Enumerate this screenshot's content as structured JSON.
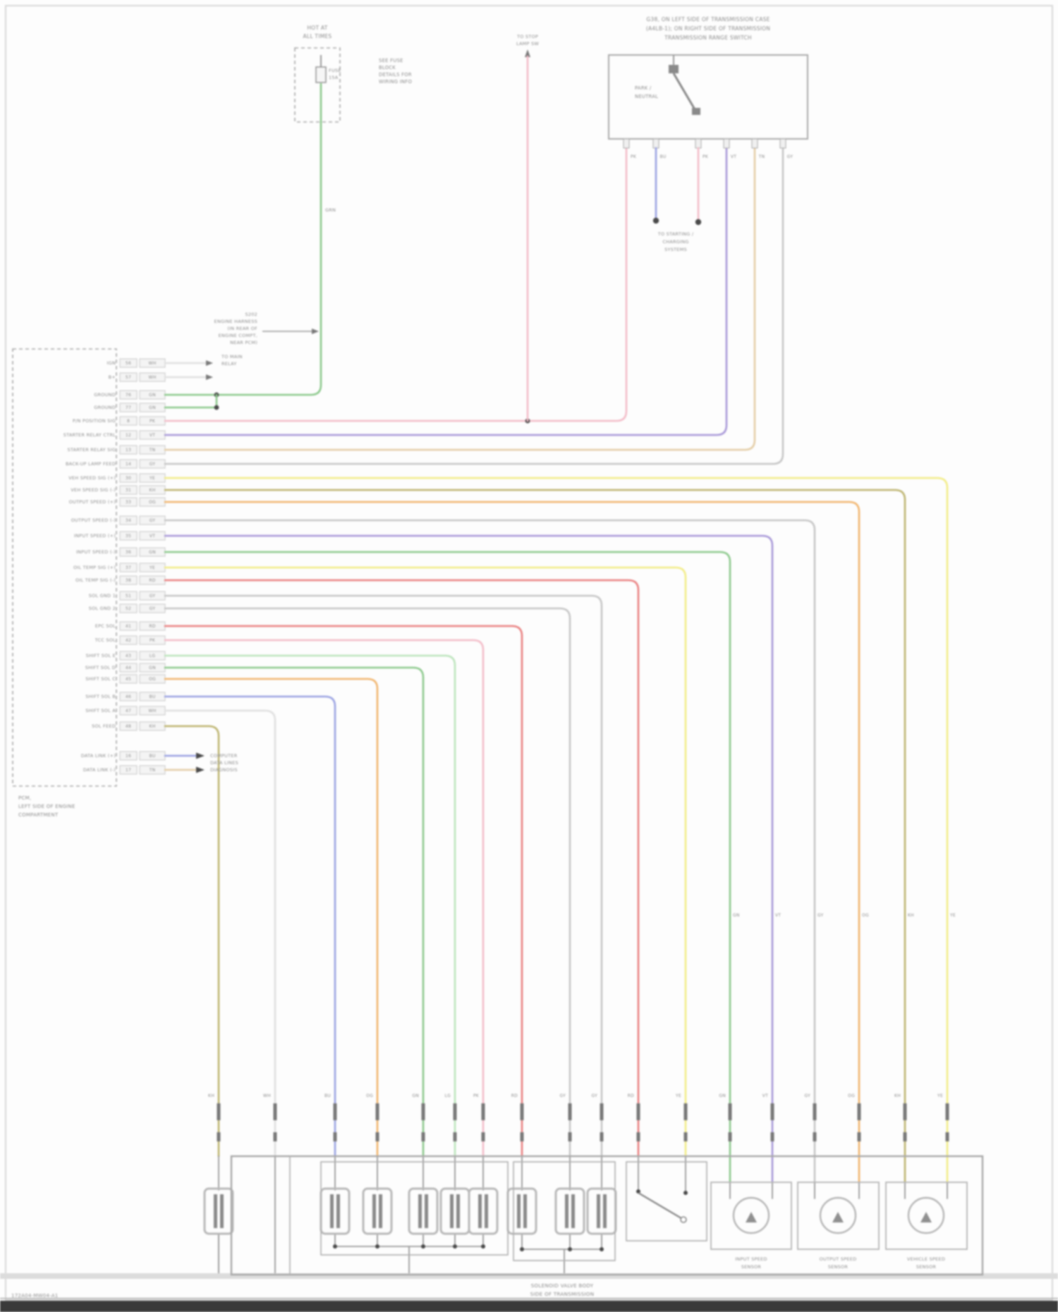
{
  "colors": {
    "wires": {
      "WH": "#e0e0e0",
      "GY": "#c6c6c6",
      "GN": "#8cc98c",
      "LG": "#bce4bc",
      "PK": "#f3bcc8",
      "RD": "#e98080",
      "BU": "#9aa2e2",
      "VT": "#a898d8",
      "OG": "#f1b56e",
      "TN": "#e4cda6",
      "KH": "#bdb470",
      "YE": "#f2ec86"
    },
    "box_line": "#a9a9a9",
    "inner_line": "#9a9a9a",
    "footer_bar": "#3a3a3a",
    "footer_band": "#dcdcdc"
  },
  "diagram": {
    "footer_code": "172A04-MW04-A1",
    "fuse_box": {
      "header_lines": [
        "HOT AT",
        "ALL TIMES"
      ],
      "fuse_name": "FUSE",
      "fuse_rating": "15A",
      "side_note_lines": [
        "SEE FUSE",
        "BLOCK",
        "DETAILS FOR",
        "WIRING INFO"
      ],
      "wire_code": "GRN",
      "splice_note_lines": [
        "S202",
        "ENGINE HARNESS",
        "(IN REAR OF",
        "ENGINE COMPT,",
        "NEAR PCM)"
      ]
    },
    "range_switch_box": {
      "header_lines": [
        "G38, ON LEFT SIDE OF TRANSMISSION CASE",
        "(A4LB-1); ON RIGHT SIDE OF TRANSMISSION",
        "TRANSMISSION RANGE SWITCH"
      ],
      "inner_label_lines": [
        "PARK /",
        "NEUTRAL"
      ],
      "pin_codes": [
        "PK",
        "BU",
        "PK",
        "VT",
        "TN",
        "GY"
      ],
      "splice_label_lines": [
        "TO STARTING /",
        "CHARGING",
        "SYSTEMS"
      ]
    },
    "stoplamp_ref_lines": [
      "TO STOP",
      "LAMP SW"
    ],
    "main_relay_ref_lines": [
      "TO MAIN",
      "RELAY"
    ],
    "pcm": {
      "label_lines": [
        "PCM,",
        "LEFT SIDE OF ENGINE",
        "COMPARTMENT"
      ],
      "rows": [
        {
          "label": "IGN",
          "pin": "56",
          "code": "WH"
        },
        {
          "label": "B+",
          "pin": "57",
          "code": "WH"
        },
        {
          "label": "GROUND",
          "pin": "76",
          "code": "GN"
        },
        {
          "label": "GROUND",
          "pin": "77",
          "code": "GN"
        },
        {
          "label": "P/N POSITION SIG",
          "pin": "8",
          "code": "PK"
        },
        {
          "label": "STARTER RELAY CTRL",
          "pin": "12",
          "code": "VT"
        },
        {
          "label": "STARTER RELAY SIG",
          "pin": "13",
          "code": "TN"
        },
        {
          "label": "BACK-UP LAMP FEED",
          "pin": "14",
          "code": "GY"
        },
        {
          "label": "VEH SPEED SIG (+)",
          "pin": "30",
          "code": "YE"
        },
        {
          "label": "VEH SPEED SIG (-)",
          "pin": "31",
          "code": "KH"
        },
        {
          "label": "OUTPUT SPEED (+)",
          "pin": "33",
          "code": "OG"
        },
        {
          "label": "OUTPUT SPEED (-)",
          "pin": "34",
          "code": "GY"
        },
        {
          "label": "INPUT SPEED (+)",
          "pin": "35",
          "code": "VT"
        },
        {
          "label": "INPUT SPEED (-)",
          "pin": "36",
          "code": "GN"
        },
        {
          "label": "OIL TEMP SIG (+)",
          "pin": "37",
          "code": "YE"
        },
        {
          "label": "OIL TEMP SIG (-)",
          "pin": "38",
          "code": "RD"
        },
        {
          "label": "SOL GND 1",
          "pin": "51",
          "code": "GY"
        },
        {
          "label": "SOL GND 2",
          "pin": "52",
          "code": "GY"
        },
        {
          "label": "EPC SOL",
          "pin": "41",
          "code": "RD"
        },
        {
          "label": "TCC SOL",
          "pin": "42",
          "code": "PK"
        },
        {
          "label": "SHIFT SOL E",
          "pin": "43",
          "code": "LG"
        },
        {
          "label": "SHIFT SOL D",
          "pin": "44",
          "code": "GN"
        },
        {
          "label": "SHIFT SOL C",
          "pin": "45",
          "code": "OG"
        },
        {
          "label": "SHIFT SOL B",
          "pin": "46",
          "code": "BU"
        },
        {
          "label": "SHIFT SOL A",
          "pin": "47",
          "code": "WH"
        },
        {
          "label": "SOL FEED",
          "pin": "48",
          "code": "KH"
        }
      ],
      "step_rows": [
        {
          "label": "DATA LINK (+)",
          "pin": "16",
          "code": "BU",
          "note_lines": [
            "COMPUTER",
            "DATA LINES"
          ]
        },
        {
          "label": "DATA LINK (-)",
          "pin": "17",
          "code": "TN",
          "note_lines": [
            "DIAGNOSIS"
          ]
        }
      ]
    },
    "bottom": {
      "center_label_lines": [
        "SOLENOID VALVE BODY",
        "SIDE OF TRANSMISSION"
      ],
      "sensors": [
        {
          "line1": "INPUT SPEED",
          "line2": "SENSOR"
        },
        {
          "line1": "OUTPUT SPEED",
          "line2": "SENSOR"
        },
        {
          "line1": "VEHICLE SPEED",
          "line2": "SENSOR"
        }
      ]
    }
  }
}
